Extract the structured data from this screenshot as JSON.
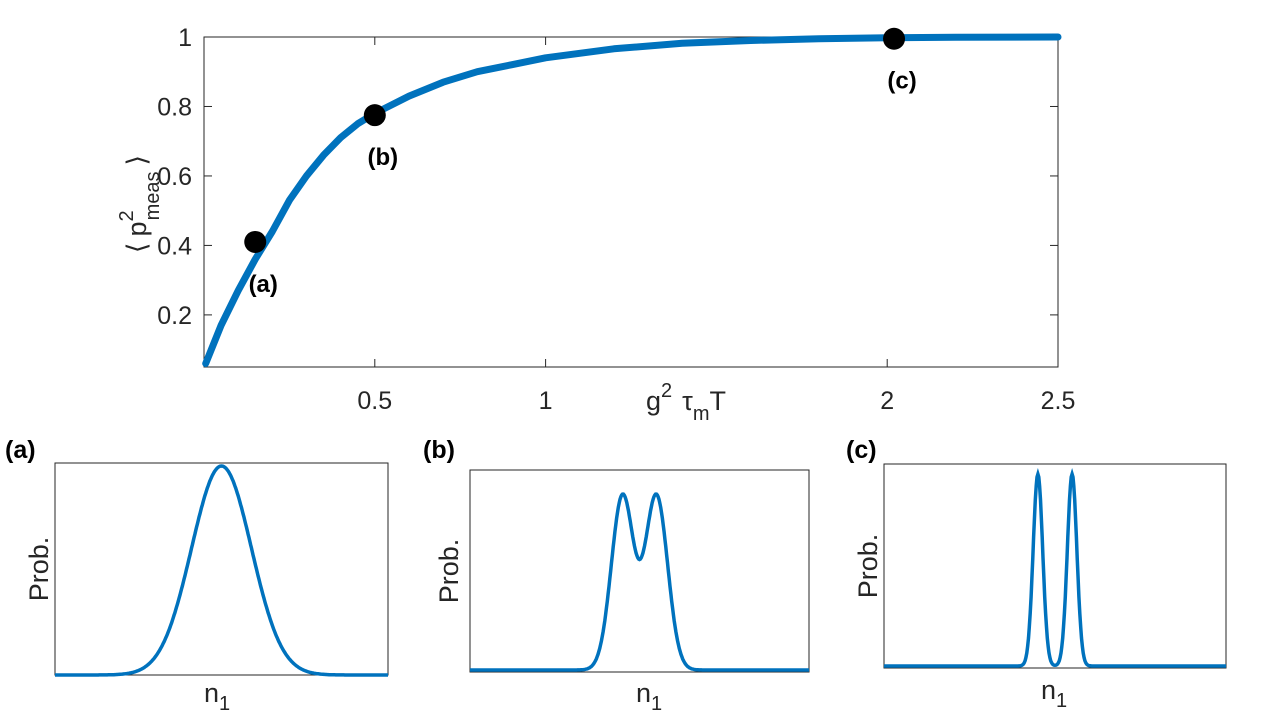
{
  "chart_data": [
    {
      "type": "line",
      "xlabel": "g2 τmT",
      "xlabel_parts": {
        "g": "g",
        "g_sup": "2",
        "tau": "τ",
        "tau_sub": "m",
        "T": "T"
      },
      "ylabel_parts": {
        "left_bracket": "⟨",
        "p": "p",
        "sup": "2",
        "sub": "meas",
        "right_bracket": "⟩"
      },
      "xlim": [
        0,
        2.5
      ],
      "ylim": [
        0.05,
        1.0
      ],
      "x_ticks": [
        0.5,
        1,
        2,
        2.5
      ],
      "x_tick_labels": [
        "0.5",
        "1",
        "2",
        "2.5"
      ],
      "y_ticks": [
        0.2,
        0.4,
        0.6,
        0.8,
        1
      ],
      "y_tick_labels": [
        "0.2",
        "0.4",
        "0.6",
        "0.8",
        "1"
      ],
      "grid": false,
      "color": "#0072BD",
      "series": [
        {
          "x": [
            0.005,
            0.05,
            0.1,
            0.15,
            0.2,
            0.25,
            0.3,
            0.35,
            0.4,
            0.45,
            0.5,
            0.6,
            0.7,
            0.8,
            0.9,
            1.0,
            1.2,
            1.4,
            1.6,
            1.8,
            2.0,
            2.2,
            2.5
          ],
          "y": [
            0.06,
            0.17,
            0.27,
            0.36,
            0.44,
            0.53,
            0.6,
            0.66,
            0.71,
            0.75,
            0.78,
            0.83,
            0.87,
            0.9,
            0.92,
            0.94,
            0.966,
            0.982,
            0.99,
            0.995,
            0.998,
            0.999,
            1.0
          ]
        }
      ],
      "points": [
        {
          "label": "(a)",
          "x": 0.15,
          "y": 0.41
        },
        {
          "label": "(b)",
          "x": 0.5,
          "y": 0.775
        },
        {
          "label": "(c)",
          "x": 2.02,
          "y": 0.995
        }
      ]
    },
    {
      "type": "line",
      "panel": "(a)",
      "xlabel": "n1",
      "xlabel_parts": {
        "n": "n",
        "sub": "1"
      },
      "ylabel": "Prob.",
      "xlim": [
        -5,
        5
      ],
      "ylim": [
        0,
        1
      ],
      "grid": false,
      "series": [
        {
          "peaks": [
            0
          ],
          "width": 0.9,
          "peak_height": 1.0,
          "baseline": 0
        }
      ]
    },
    {
      "type": "line",
      "panel": "(b)",
      "xlabel": "n1",
      "xlabel_parts": {
        "n": "n",
        "sub": "1"
      },
      "ylabel": "Prob.",
      "xlim": [
        -5,
        5
      ],
      "ylim": [
        0,
        1
      ],
      "grid": false,
      "series": [
        {
          "peaks": [
            -0.5,
            0.5
          ],
          "width": 0.33,
          "peak_height": 0.88,
          "baseline": 0
        }
      ]
    },
    {
      "type": "line",
      "panel": "(c)",
      "xlabel": "n1",
      "xlabel_parts": {
        "n": "n",
        "sub": "1"
      },
      "ylabel": "Prob.",
      "xlim": [
        -5,
        5
      ],
      "ylim": [
        0,
        1
      ],
      "grid": false,
      "series": [
        {
          "peaks": [
            -0.5,
            0.5
          ],
          "width": 0.14,
          "peak_height": 0.95,
          "baseline": 0
        }
      ]
    }
  ]
}
